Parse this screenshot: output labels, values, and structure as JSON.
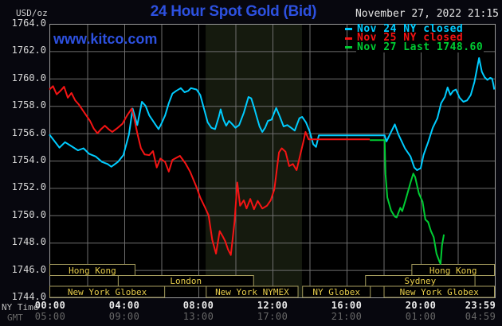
{
  "header": {
    "units_label": "USD/oz",
    "title": "24 Hour Spot Gold (Bid)",
    "datetime": "November 27, 2022 21:15",
    "watermark": "www.kitco.com"
  },
  "colors": {
    "background": "#07070e",
    "plot_background": "#000000",
    "band": "#151a0e",
    "grid": "#6e6e6e",
    "border": "#9a9a9a",
    "accent_blue": "#2d51e0",
    "cyan": "#00ccff",
    "red": "#f51414",
    "green": "#00cc33",
    "session_border": "#a69d5e",
    "session_text": "#e6cc4a"
  },
  "legend": [
    {
      "label": "Nov 24 NY closed",
      "color": "#00ccff"
    },
    {
      "label": "Nov 25 NY closed",
      "color": "#f51414"
    },
    {
      "label": "Nov 27 Last 1748.60",
      "color": "#00cc33"
    }
  ],
  "axes": {
    "x": {
      "label_top": "NY Time",
      "label_bottom": "GMT",
      "ny_ticks": [
        "00:00",
        "04:00",
        "08:00",
        "12:00",
        "16:00",
        "20:00",
        "23:59"
      ],
      "gmt_ticks": [
        "05:00",
        "09:00",
        "13:00",
        "17:00",
        "21:00",
        "01:00",
        "04:59"
      ],
      "tick_hours": [
        0,
        4,
        8,
        12,
        16,
        20,
        24
      ]
    },
    "y": {
      "min": 1744.0,
      "max": 1764.0,
      "step": 2.0,
      "tick_labels": [
        "1764.0",
        "1762.0",
        "1760.0",
        "1758.0",
        "1756.0",
        "1754.0",
        "1752.0",
        "1750.0",
        "1748.0",
        "1746.0",
        "1744.0"
      ]
    }
  },
  "band": {
    "name": "nymex-floor-session",
    "start_h": 8.39,
    "end_h": 13.59
  },
  "sessions": {
    "rows": [
      {
        "boxes": [
          {
            "label": "Hong Kong",
            "start_h": 0,
            "end_h": 4.6
          },
          {
            "label": "Hong Kong",
            "start_h": 19.5,
            "end_h": 24
          }
        ]
      },
      {
        "boxes": [
          {
            "label": "London",
            "start_h": 3.65,
            "end_h": 11.0
          },
          {
            "label": "Sydney",
            "start_h": 17.0,
            "end_h": 22.95
          }
        ]
      },
      {
        "boxes": [
          {
            "label": "New York Globex",
            "start_h": 0,
            "end_h": 6.2
          },
          {
            "label": "New York NYMEX",
            "start_h": 8.4,
            "end_h": 13.4
          },
          {
            "label": "NY Globex",
            "start_h": 13.6,
            "end_h": 17.3
          },
          {
            "label": "New York Globex",
            "start_h": 18.0,
            "end_h": 24
          }
        ]
      }
    ]
  },
  "chart_data": {
    "type": "line",
    "title": "24 Hour Spot Gold (Bid)",
    "xlabel": "NY Time (top) / GMT (bottom), hours 00:00-23:59",
    "ylabel": "USD/oz",
    "ylim": [
      1744.0,
      1764.0
    ],
    "grid": true,
    "legend_position": "top-right",
    "series": [
      {
        "name": "Nov 24 NY closed",
        "color": "#00ccff",
        "points": [
          [
            0,
            1755.9
          ],
          [
            0.3,
            1755.3
          ],
          [
            0.5,
            1754.95
          ],
          [
            0.8,
            1755.35
          ],
          [
            1.15,
            1755.05
          ],
          [
            1.5,
            1754.75
          ],
          [
            1.8,
            1754.9
          ],
          [
            2.1,
            1754.5
          ],
          [
            2.45,
            1754.3
          ],
          [
            2.8,
            1753.9
          ],
          [
            3.1,
            1753.75
          ],
          [
            3.3,
            1753.55
          ],
          [
            3.65,
            1753.9
          ],
          [
            3.95,
            1754.4
          ],
          [
            4.25,
            1755.9
          ],
          [
            4.45,
            1757.8
          ],
          [
            4.7,
            1756.6
          ],
          [
            4.95,
            1758.3
          ],
          [
            5.15,
            1758.0
          ],
          [
            5.35,
            1757.3
          ],
          [
            5.55,
            1756.9
          ],
          [
            5.7,
            1756.6
          ],
          [
            5.85,
            1756.3
          ],
          [
            6.0,
            1756.7
          ],
          [
            6.2,
            1757.3
          ],
          [
            6.4,
            1758.2
          ],
          [
            6.6,
            1758.9
          ],
          [
            6.8,
            1759.1
          ],
          [
            7.05,
            1759.3
          ],
          [
            7.25,
            1759.0
          ],
          [
            7.45,
            1759.1
          ],
          [
            7.6,
            1759.3
          ],
          [
            7.9,
            1759.2
          ],
          [
            8.1,
            1758.8
          ],
          [
            8.3,
            1757.8
          ],
          [
            8.5,
            1756.8
          ],
          [
            8.7,
            1756.4
          ],
          [
            8.9,
            1756.3
          ],
          [
            9.1,
            1757.2
          ],
          [
            9.2,
            1757.75
          ],
          [
            9.35,
            1757.0
          ],
          [
            9.5,
            1756.55
          ],
          [
            9.65,
            1756.9
          ],
          [
            9.8,
            1756.7
          ],
          [
            10.0,
            1756.4
          ],
          [
            10.2,
            1756.6
          ],
          [
            10.45,
            1757.5
          ],
          [
            10.7,
            1758.65
          ],
          [
            10.85,
            1758.55
          ],
          [
            11.0,
            1757.9
          ],
          [
            11.15,
            1757.2
          ],
          [
            11.3,
            1756.5
          ],
          [
            11.45,
            1756.1
          ],
          [
            11.6,
            1756.4
          ],
          [
            11.75,
            1756.9
          ],
          [
            11.95,
            1757.0
          ],
          [
            12.2,
            1757.85
          ],
          [
            12.4,
            1757.2
          ],
          [
            12.6,
            1756.5
          ],
          [
            12.8,
            1756.6
          ],
          [
            13.0,
            1756.4
          ],
          [
            13.2,
            1756.2
          ],
          [
            13.45,
            1757.1
          ],
          [
            13.6,
            1757.2
          ],
          [
            13.8,
            1756.8
          ],
          [
            14.0,
            1756.15
          ],
          [
            14.2,
            1755.2
          ],
          [
            14.35,
            1755.0
          ],
          [
            14.5,
            1755.85
          ],
          [
            18.05,
            1755.85
          ],
          [
            18.15,
            1755.4
          ],
          [
            18.4,
            1756.1
          ],
          [
            18.6,
            1756.65
          ],
          [
            18.8,
            1755.9
          ],
          [
            19.15,
            1754.9
          ],
          [
            19.45,
            1754.3
          ],
          [
            19.65,
            1753.5
          ],
          [
            19.8,
            1753.3
          ],
          [
            20.0,
            1753.45
          ],
          [
            20.15,
            1754.4
          ],
          [
            20.4,
            1755.35
          ],
          [
            20.65,
            1756.4
          ],
          [
            20.9,
            1757.1
          ],
          [
            21.1,
            1758.2
          ],
          [
            21.3,
            1758.65
          ],
          [
            21.45,
            1759.35
          ],
          [
            21.6,
            1758.8
          ],
          [
            21.75,
            1759.1
          ],
          [
            21.9,
            1759.2
          ],
          [
            22.1,
            1758.6
          ],
          [
            22.3,
            1758.3
          ],
          [
            22.5,
            1758.4
          ],
          [
            22.7,
            1758.8
          ],
          [
            22.9,
            1759.75
          ],
          [
            23.05,
            1760.8
          ],
          [
            23.15,
            1761.5
          ],
          [
            23.3,
            1760.5
          ],
          [
            23.45,
            1760.1
          ],
          [
            23.6,
            1759.9
          ],
          [
            23.75,
            1760.05
          ],
          [
            23.85,
            1760.0
          ],
          [
            23.92,
            1759.6
          ],
          [
            23.97,
            1759.2
          ]
        ]
      },
      {
        "name": "Nov 25 NY closed",
        "color": "#f51414",
        "points": [
          [
            0,
            1759.2
          ],
          [
            0.15,
            1759.45
          ],
          [
            0.35,
            1758.85
          ],
          [
            0.55,
            1759.1
          ],
          [
            0.75,
            1759.4
          ],
          [
            0.95,
            1758.6
          ],
          [
            1.15,
            1758.95
          ],
          [
            1.35,
            1758.4
          ],
          [
            1.55,
            1758.1
          ],
          [
            1.75,
            1757.7
          ],
          [
            1.95,
            1757.3
          ],
          [
            2.15,
            1756.9
          ],
          [
            2.35,
            1756.35
          ],
          [
            2.55,
            1756.0
          ],
          [
            2.75,
            1756.3
          ],
          [
            2.95,
            1756.55
          ],
          [
            3.15,
            1756.3
          ],
          [
            3.35,
            1756.1
          ],
          [
            3.6,
            1756.35
          ],
          [
            3.9,
            1756.7
          ],
          [
            4.15,
            1757.3
          ],
          [
            4.4,
            1757.8
          ],
          [
            4.55,
            1757.0
          ],
          [
            4.7,
            1756.0
          ],
          [
            4.9,
            1754.9
          ],
          [
            5.1,
            1754.45
          ],
          [
            5.35,
            1754.4
          ],
          [
            5.55,
            1754.7
          ],
          [
            5.75,
            1753.5
          ],
          [
            5.95,
            1754.15
          ],
          [
            6.2,
            1753.9
          ],
          [
            6.4,
            1753.2
          ],
          [
            6.6,
            1754.05
          ],
          [
            7.0,
            1754.35
          ],
          [
            7.3,
            1753.8
          ],
          [
            7.55,
            1753.2
          ],
          [
            7.9,
            1752.05
          ],
          [
            8.1,
            1751.3
          ],
          [
            8.35,
            1750.6
          ],
          [
            8.55,
            1750.0
          ],
          [
            8.75,
            1748.2
          ],
          [
            8.95,
            1747.2
          ],
          [
            9.15,
            1748.85
          ],
          [
            9.3,
            1748.5
          ],
          [
            9.45,
            1748.1
          ],
          [
            9.6,
            1747.5
          ],
          [
            9.75,
            1747.1
          ],
          [
            9.95,
            1749.5
          ],
          [
            10.1,
            1752.4
          ],
          [
            10.25,
            1750.7
          ],
          [
            10.45,
            1751.1
          ],
          [
            10.6,
            1750.5
          ],
          [
            10.8,
            1751.2
          ],
          [
            11.0,
            1750.45
          ],
          [
            11.2,
            1751.05
          ],
          [
            11.45,
            1750.5
          ],
          [
            11.7,
            1750.7
          ],
          [
            11.9,
            1751.1
          ],
          [
            12.1,
            1751.9
          ],
          [
            12.35,
            1754.6
          ],
          [
            12.5,
            1754.9
          ],
          [
            12.7,
            1754.65
          ],
          [
            12.9,
            1753.6
          ],
          [
            13.1,
            1753.75
          ],
          [
            13.3,
            1753.3
          ],
          [
            13.5,
            1754.45
          ],
          [
            13.65,
            1755.3
          ],
          [
            13.78,
            1756.1
          ],
          [
            13.95,
            1755.55
          ],
          [
            17.25,
            1755.55
          ]
        ]
      },
      {
        "name": "Nov 27 Last 1748.60",
        "color": "#00cc33",
        "last_value": 1748.6,
        "points": [
          [
            17.25,
            1755.5
          ],
          [
            18.05,
            1755.5
          ],
          [
            18.1,
            1753.0
          ],
          [
            18.2,
            1751.3
          ],
          [
            18.4,
            1750.35
          ],
          [
            18.6,
            1749.9
          ],
          [
            18.7,
            1749.85
          ],
          [
            18.9,
            1750.55
          ],
          [
            19.0,
            1750.3
          ],
          [
            19.2,
            1751.2
          ],
          [
            19.45,
            1752.4
          ],
          [
            19.6,
            1753.05
          ],
          [
            19.7,
            1752.8
          ],
          [
            19.9,
            1751.6
          ],
          [
            20.1,
            1751.0
          ],
          [
            20.25,
            1749.7
          ],
          [
            20.4,
            1749.5
          ],
          [
            20.55,
            1748.85
          ],
          [
            20.7,
            1748.4
          ],
          [
            20.85,
            1747.2
          ],
          [
            21.0,
            1746.65
          ],
          [
            21.07,
            1746.45
          ],
          [
            21.15,
            1747.8
          ],
          [
            21.25,
            1748.6
          ]
        ]
      }
    ]
  }
}
